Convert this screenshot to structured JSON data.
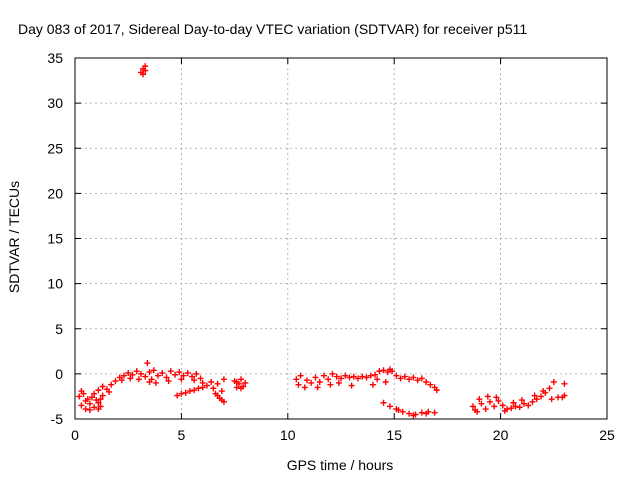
{
  "chart_data": {
    "type": "scatter",
    "title": "Day 083 of 2017, Sidereal Day-to-day VTEC variation (SDTVAR) for receiver p511",
    "xlabel": "GPS time / hours",
    "ylabel": "SDTVAR / TECUs",
    "xlim": [
      0,
      25
    ],
    "ylim": [
      -5,
      35
    ],
    "xticks": [
      0,
      5,
      10,
      15,
      20,
      25
    ],
    "yticks": [
      -5,
      0,
      5,
      10,
      15,
      20,
      25,
      30,
      35
    ],
    "grid": true,
    "marker": "plus",
    "color": "#ff0000",
    "segments": [
      {
        "name": "seg-a",
        "points": [
          [
            0.2,
            -2.5
          ],
          [
            0.3,
            -3.5
          ],
          [
            0.4,
            -2.2
          ],
          [
            0.5,
            -3.9
          ],
          [
            0.6,
            -2.8
          ],
          [
            0.7,
            -3.3
          ],
          [
            0.8,
            -2.6
          ],
          [
            0.9,
            -3.7
          ],
          [
            1.0,
            -2.9
          ],
          [
            1.1,
            -3.2
          ],
          [
            1.2,
            -3.6
          ],
          [
            1.3,
            -2.4
          ],
          [
            0.3,
            -1.9
          ],
          [
            0.5,
            -3.0
          ],
          [
            0.7,
            -4.0
          ],
          [
            0.9,
            -2.2
          ],
          [
            1.1,
            -3.9
          ],
          [
            1.2,
            -2.8
          ]
        ]
      },
      {
        "name": "seg-b",
        "points": [
          [
            1.1,
            -1.8
          ],
          [
            1.3,
            -1.4
          ],
          [
            1.5,
            -1.7
          ],
          [
            1.7,
            -1.2
          ],
          [
            1.6,
            -2.0
          ],
          [
            1.9,
            -0.8
          ],
          [
            2.1,
            -0.4
          ],
          [
            2.3,
            -0.2
          ],
          [
            2.5,
            0.1
          ],
          [
            2.7,
            -0.1
          ],
          [
            2.9,
            0.3
          ],
          [
            3.1,
            0.0
          ],
          [
            3.3,
            -0.3
          ],
          [
            3.5,
            0.2
          ],
          [
            3.6,
            -0.6
          ],
          [
            3.4,
            1.2
          ],
          [
            3.5,
            -0.9
          ],
          [
            3.7,
            0.4
          ],
          [
            3.9,
            -0.2
          ],
          [
            4.1,
            0.1
          ],
          [
            4.3,
            -0.4
          ],
          [
            4.5,
            0.3
          ],
          [
            4.7,
            -0.1
          ],
          [
            4.9,
            0.2
          ],
          [
            5.1,
            -0.2
          ],
          [
            5.3,
            0.1
          ],
          [
            5.5,
            -0.3
          ],
          [
            5.7,
            0.0
          ],
          [
            5.9,
            -0.5
          ],
          [
            6.0,
            -1.0
          ],
          [
            2.2,
            -0.7
          ],
          [
            2.6,
            -0.5
          ],
          [
            3.0,
            -0.6
          ],
          [
            3.8,
            -1.0
          ],
          [
            4.4,
            -0.8
          ],
          [
            5.0,
            -0.6
          ],
          [
            5.6,
            -0.7
          ]
        ]
      },
      {
        "name": "seg-c",
        "points": [
          [
            4.8,
            -2.4
          ],
          [
            5.0,
            -2.2
          ],
          [
            5.2,
            -2.1
          ],
          [
            5.4,
            -1.9
          ],
          [
            5.6,
            -1.8
          ],
          [
            5.8,
            -1.6
          ],
          [
            6.0,
            -1.5
          ],
          [
            6.2,
            -1.3
          ],
          [
            6.4,
            -0.9
          ],
          [
            6.5,
            -1.6
          ],
          [
            6.6,
            -2.2
          ],
          [
            6.7,
            -1.1
          ],
          [
            6.8,
            -2.7
          ],
          [
            6.9,
            -1.9
          ],
          [
            7.0,
            -3.1
          ],
          [
            7.0,
            -0.6
          ],
          [
            6.7,
            -2.4
          ],
          [
            6.9,
            -2.9
          ]
        ]
      },
      {
        "name": "seg-d",
        "points": [
          [
            7.5,
            -0.8
          ],
          [
            7.6,
            -1.5
          ],
          [
            7.7,
            -1.1
          ],
          [
            7.8,
            -0.6
          ],
          [
            7.9,
            -1.4
          ],
          [
            8.0,
            -1.0
          ],
          [
            7.6,
            -0.9
          ],
          [
            7.8,
            -1.6
          ]
        ]
      },
      {
        "name": "seg-e",
        "points": [
          [
            3.1,
            33.4
          ],
          [
            3.2,
            33.8
          ],
          [
            3.3,
            34.1
          ],
          [
            3.2,
            33.2
          ],
          [
            3.3,
            33.6
          ]
        ]
      },
      {
        "name": "seg-f",
        "points": [
          [
            10.4,
            -0.6
          ],
          [
            10.5,
            -1.2
          ],
          [
            10.6,
            -0.2
          ],
          [
            10.8,
            -1.5
          ],
          [
            10.9,
            -0.7
          ],
          [
            11.1,
            -1.0
          ],
          [
            11.3,
            -0.4
          ],
          [
            11.5,
            -0.9
          ],
          [
            11.7,
            -0.2
          ],
          [
            11.9,
            -0.6
          ],
          [
            12.1,
            0.0
          ],
          [
            12.3,
            -0.3
          ],
          [
            12.5,
            -0.5
          ],
          [
            12.7,
            -0.2
          ],
          [
            12.9,
            -0.4
          ],
          [
            13.1,
            -0.3
          ],
          [
            13.3,
            -0.5
          ],
          [
            13.5,
            -0.3
          ],
          [
            13.7,
            -0.4
          ],
          [
            13.9,
            -0.2
          ],
          [
            14.1,
            -0.1
          ],
          [
            14.3,
            0.3
          ],
          [
            14.5,
            0.4
          ],
          [
            14.7,
            0.2
          ],
          [
            14.9,
            0.3
          ],
          [
            15.1,
            -0.2
          ],
          [
            15.3,
            -0.5
          ],
          [
            15.5,
            -0.3
          ],
          [
            15.7,
            -0.6
          ],
          [
            15.9,
            -0.4
          ],
          [
            16.1,
            -0.7
          ],
          [
            16.3,
            -0.5
          ],
          [
            16.5,
            -0.9
          ],
          [
            16.7,
            -1.2
          ],
          [
            16.9,
            -1.5
          ],
          [
            17.0,
            -1.8
          ],
          [
            12.0,
            -1.2
          ],
          [
            12.4,
            -1.0
          ],
          [
            13.0,
            -1.3
          ],
          [
            14.0,
            -1.2
          ],
          [
            14.6,
            -0.9
          ],
          [
            11.4,
            -1.5
          ],
          [
            14.8,
            0.5
          ],
          [
            14.2,
            -0.6
          ]
        ]
      },
      {
        "name": "seg-g",
        "points": [
          [
            14.5,
            -3.2
          ],
          [
            14.8,
            -3.6
          ],
          [
            15.1,
            -3.9
          ],
          [
            15.4,
            -4.2
          ],
          [
            15.7,
            -4.4
          ],
          [
            16.0,
            -4.5
          ],
          [
            16.3,
            -4.3
          ],
          [
            16.6,
            -4.2
          ],
          [
            16.9,
            -4.3
          ],
          [
            15.2,
            -4.0
          ],
          [
            15.9,
            -4.6
          ],
          [
            16.5,
            -4.4
          ]
        ]
      },
      {
        "name": "seg-h",
        "points": [
          [
            18.7,
            -3.6
          ],
          [
            18.9,
            -4.2
          ],
          [
            19.1,
            -3.3
          ],
          [
            19.3,
            -3.9
          ],
          [
            19.5,
            -3.1
          ],
          [
            19.7,
            -3.6
          ],
          [
            19.9,
            -3.0
          ],
          [
            20.1,
            -3.5
          ],
          [
            20.3,
            -3.9
          ],
          [
            20.5,
            -3.8
          ],
          [
            20.7,
            -3.6
          ],
          [
            20.9,
            -3.7
          ],
          [
            21.1,
            -3.3
          ],
          [
            21.3,
            -3.5
          ],
          [
            21.5,
            -3.1
          ],
          [
            21.7,
            -2.8
          ],
          [
            21.9,
            -2.5
          ],
          [
            22.1,
            -2.1
          ],
          [
            22.3,
            -1.6
          ],
          [
            22.5,
            -0.9
          ],
          [
            22.7,
            -2.6
          ],
          [
            22.9,
            -2.6
          ],
          [
            23.0,
            -2.4
          ],
          [
            19.0,
            -2.8
          ],
          [
            19.4,
            -2.5
          ],
          [
            19.8,
            -2.6
          ],
          [
            20.2,
            -4.1
          ],
          [
            20.6,
            -3.2
          ],
          [
            21.0,
            -2.9
          ],
          [
            21.6,
            -2.4
          ],
          [
            22.0,
            -1.9
          ],
          [
            22.4,
            -2.8
          ],
          [
            18.8,
            -4.0
          ],
          [
            23.0,
            -1.1
          ]
        ]
      }
    ]
  }
}
